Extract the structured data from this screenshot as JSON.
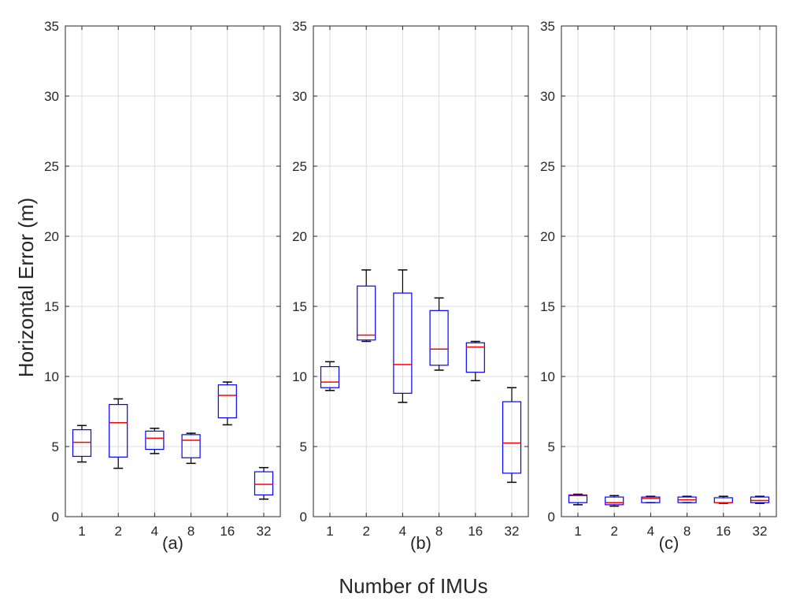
{
  "chart_data": {
    "type": "boxplot",
    "ylabel": "Horizontal Error (m)",
    "xlabel": "Number of IMUs",
    "ylim": [
      0,
      35
    ],
    "yticks": [
      0,
      5,
      10,
      15,
      20,
      25,
      30,
      35
    ],
    "grid": true,
    "categories": [
      "1",
      "2",
      "4",
      "8",
      "16",
      "32"
    ],
    "colors": {
      "box": "#0000ff",
      "median": "#ff0000",
      "whisker": "#000000",
      "grid": "#dcdcdc",
      "axis": "#262626"
    },
    "panels": [
      {
        "label": "(a)",
        "boxes": [
          {
            "category": "1",
            "min": 3.9,
            "q1": 4.3,
            "median": 5.3,
            "q3": 6.2,
            "max": 6.5
          },
          {
            "category": "2",
            "min": 3.45,
            "q1": 4.25,
            "median": 6.7,
            "q3": 8.0,
            "max": 8.4
          },
          {
            "category": "4",
            "min": 4.5,
            "q1": 4.8,
            "median": 5.6,
            "q3": 6.1,
            "max": 6.3
          },
          {
            "category": "8",
            "min": 3.8,
            "q1": 4.2,
            "median": 5.45,
            "q3": 5.85,
            "max": 5.95
          },
          {
            "category": "16",
            "min": 6.55,
            "q1": 7.05,
            "median": 8.65,
            "q3": 9.4,
            "max": 9.6
          },
          {
            "category": "32",
            "min": 1.25,
            "q1": 1.55,
            "median": 2.3,
            "q3": 3.2,
            "max": 3.5
          }
        ]
      },
      {
        "label": "(b)",
        "boxes": [
          {
            "category": "1",
            "min": 9.0,
            "q1": 9.2,
            "median": 9.6,
            "q3": 10.7,
            "max": 11.05
          },
          {
            "category": "2",
            "min": 12.5,
            "q1": 12.6,
            "median": 12.95,
            "q3": 16.45,
            "max": 17.6
          },
          {
            "category": "4",
            "min": 8.15,
            "q1": 8.8,
            "median": 10.85,
            "q3": 15.95,
            "max": 17.6
          },
          {
            "category": "8",
            "min": 10.45,
            "q1": 10.8,
            "median": 11.95,
            "q3": 14.7,
            "max": 15.6
          },
          {
            "category": "16",
            "min": 9.7,
            "q1": 10.3,
            "median": 12.1,
            "q3": 12.4,
            "max": 12.5
          },
          {
            "category": "32",
            "min": 2.45,
            "q1": 3.1,
            "median": 5.25,
            "q3": 8.2,
            "max": 9.2
          }
        ]
      },
      {
        "label": "(c)",
        "boxes": [
          {
            "category": "1",
            "min": 0.85,
            "q1": 1.0,
            "median": 1.5,
            "q3": 1.55,
            "max": 1.6
          },
          {
            "category": "2",
            "min": 0.75,
            "q1": 0.85,
            "median": 1.0,
            "q3": 1.4,
            "max": 1.5
          },
          {
            "category": "4",
            "min": 1.0,
            "q1": 1.0,
            "median": 1.3,
            "q3": 1.4,
            "max": 1.45
          },
          {
            "category": "8",
            "min": 1.0,
            "q1": 1.0,
            "median": 1.2,
            "q3": 1.4,
            "max": 1.45
          },
          {
            "category": "16",
            "min": 0.95,
            "q1": 1.0,
            "median": 1.0,
            "q3": 1.35,
            "max": 1.45
          },
          {
            "category": "32",
            "min": 0.95,
            "q1": 1.0,
            "median": 1.15,
            "q3": 1.4,
            "max": 1.45
          }
        ]
      }
    ]
  }
}
